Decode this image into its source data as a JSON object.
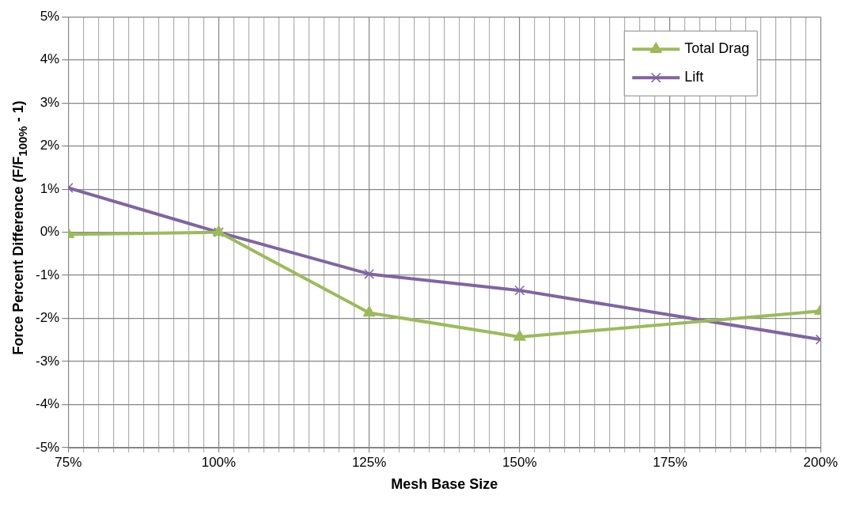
{
  "chart_data": {
    "type": "line",
    "xlabel": "Mesh Base Size",
    "ylabel": "Force Percent Difference (F/F$_{100%}$ - 1)",
    "x": [
      75,
      100,
      125,
      150,
      200
    ],
    "series": [
      {
        "name": "Total Drag",
        "color": "#9bbb59",
        "marker": "triangle",
        "values": [
          -0.05,
          0,
          -1.87,
          -2.43,
          -1.83
        ]
      },
      {
        "name": "Lift",
        "color": "#8064a2",
        "marker": "cross",
        "values": [
          1.03,
          0,
          -0.97,
          -1.35,
          -2.49
        ]
      }
    ],
    "xlim": [
      75,
      200
    ],
    "xticks": [
      {
        "value": 75,
        "label": "75%"
      },
      {
        "value": 77.5,
        "label": null
      },
      {
        "value": 80,
        "label": null
      },
      {
        "value": 82.5,
        "label": null
      },
      {
        "value": 85,
        "label": null
      },
      {
        "value": 87.5,
        "label": null
      },
      {
        "value": 90,
        "label": null
      },
      {
        "value": 92.5,
        "label": null
      },
      {
        "value": 95,
        "label": null
      },
      {
        "value": 97.5,
        "label": null
      },
      {
        "value": 100,
        "label": "100%"
      },
      {
        "value": 102.5,
        "label": null
      },
      {
        "value": 105,
        "label": null
      },
      {
        "value": 107.5,
        "label": null
      },
      {
        "value": 110,
        "label": null
      },
      {
        "value": 112.5,
        "label": null
      },
      {
        "value": 115,
        "label": null
      },
      {
        "value": 117.5,
        "label": null
      },
      {
        "value": 120,
        "label": null
      },
      {
        "value": 122.5,
        "label": null
      },
      {
        "value": 125,
        "label": "125%"
      },
      {
        "value": 127.5,
        "label": null
      },
      {
        "value": 130,
        "label": null
      },
      {
        "value": 132.5,
        "label": null
      },
      {
        "value": 135,
        "label": null
      },
      {
        "value": 137.5,
        "label": null
      },
      {
        "value": 140,
        "label": null
      },
      {
        "value": 142.5,
        "label": null
      },
      {
        "value": 145,
        "label": null
      },
      {
        "value": 147.5,
        "label": null
      },
      {
        "value": 150,
        "label": "150%"
      },
      {
        "value": 152.5,
        "label": null
      },
      {
        "value": 155,
        "label": null
      },
      {
        "value": 157.5,
        "label": null
      },
      {
        "value": 160,
        "label": null
      },
      {
        "value": 162.5,
        "label": null
      },
      {
        "value": 165,
        "label": null
      },
      {
        "value": 167.5,
        "label": null
      },
      {
        "value": 170,
        "label": null
      },
      {
        "value": 172.5,
        "label": null
      },
      {
        "value": 175,
        "label": "175%"
      },
      {
        "value": 177.5,
        "label": null
      },
      {
        "value": 180,
        "label": null
      },
      {
        "value": 182.5,
        "label": null
      },
      {
        "value": 185,
        "label": null
      },
      {
        "value": 187.5,
        "label": null
      },
      {
        "value": 190,
        "label": null
      },
      {
        "value": 192.5,
        "label": null
      },
      {
        "value": 195,
        "label": null
      },
      {
        "value": 197.5,
        "label": null
      },
      {
        "value": 200,
        "label": "200%"
      }
    ],
    "ylim": [
      -5,
      5
    ],
    "yticks": [
      {
        "value": -5,
        "label": "-5%"
      },
      {
        "value": -4,
        "label": "-4%"
      },
      {
        "value": -3,
        "label": "-3%"
      },
      {
        "value": -2,
        "label": "-2%"
      },
      {
        "value": -1,
        "label": "-1%"
      },
      {
        "value": 0,
        "label": "0%"
      },
      {
        "value": 1,
        "label": "1%"
      },
      {
        "value": 2,
        "label": "2%"
      },
      {
        "value": 3,
        "label": "3%"
      },
      {
        "value": 4,
        "label": "4%"
      },
      {
        "value": 5,
        "label": "5%"
      }
    ],
    "grid": true,
    "legend": "top right",
    "line_style": "solid"
  }
}
